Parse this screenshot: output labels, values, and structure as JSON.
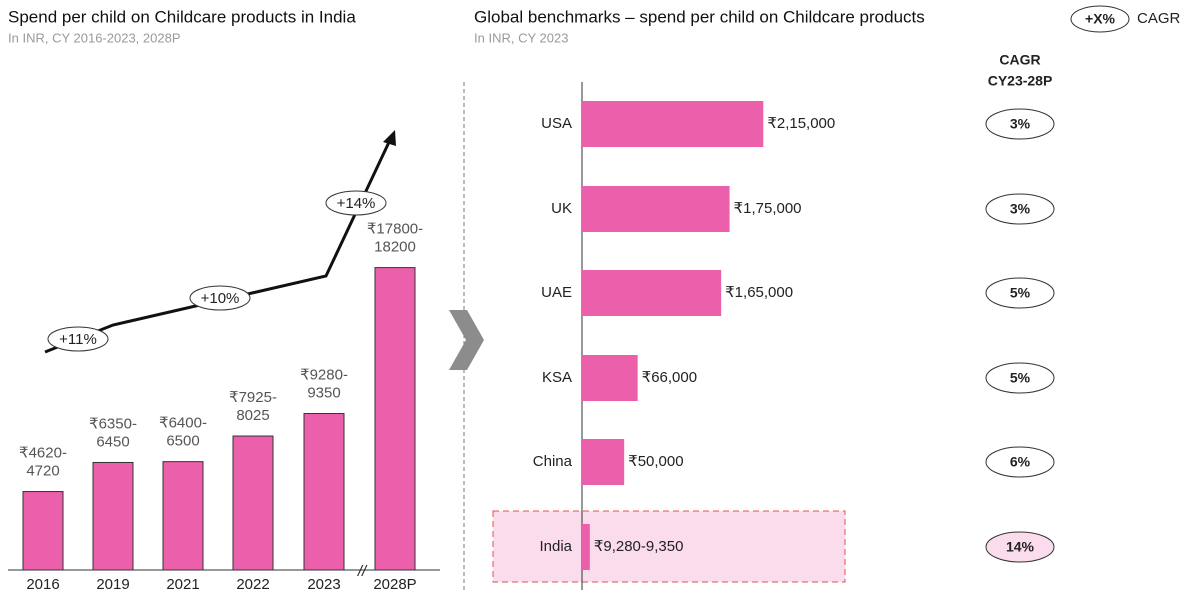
{
  "chart_data": [
    {
      "type": "bar",
      "title": "Spend per child on Childcare products in India",
      "subtitle": "In INR, CY 2016-2023, 2028P",
      "categories": [
        "2016",
        "2019",
        "2021",
        "2022",
        "2023",
        "2028P"
      ],
      "values_low": [
        4620,
        6350,
        6400,
        7925,
        9280,
        17800
      ],
      "values_high": [
        4720,
        6450,
        6500,
        8025,
        9350,
        18200
      ],
      "value_labels": [
        [
          "₹4620-",
          "4720"
        ],
        [
          "₹6350-",
          "6450"
        ],
        [
          "₹6400-",
          "6500"
        ],
        [
          "₹7925-",
          "8025"
        ],
        [
          "₹9280-",
          "9350"
        ],
        [
          "₹17800-",
          "18200"
        ]
      ],
      "color": "#ec5fab",
      "ylim": [
        0,
        20000
      ],
      "annotations": [
        "+11%",
        "+10%",
        "+14%"
      ],
      "axis_break": "//"
    },
    {
      "type": "hbar",
      "title": "Global benchmarks – spend per child on Childcare products",
      "subtitle": "In INR, CY 2023",
      "categories": [
        "USA",
        "UK",
        "UAE",
        "KSA",
        "China",
        "India"
      ],
      "values": [
        215000,
        175000,
        165000,
        66000,
        50000,
        9280
      ],
      "value_labels": [
        "₹2,15,000",
        "₹1,75,000",
        "₹1,65,000",
        "₹66,000",
        "₹50,000",
        "₹9,280-9,350"
      ],
      "color": "#ec5fab",
      "highlight_color": "#fbdcec",
      "xlim": [
        0,
        300000
      ],
      "cagr_header": [
        "CAGR",
        "CY23-28P"
      ],
      "cagr": [
        3,
        3,
        5,
        5,
        6,
        14
      ],
      "cagr_labels": [
        "3%",
        "3%",
        "5%",
        "5%",
        "6%",
        "14%"
      ],
      "legend": {
        "symbol": "+X%",
        "text": "CAGR"
      }
    }
  ]
}
